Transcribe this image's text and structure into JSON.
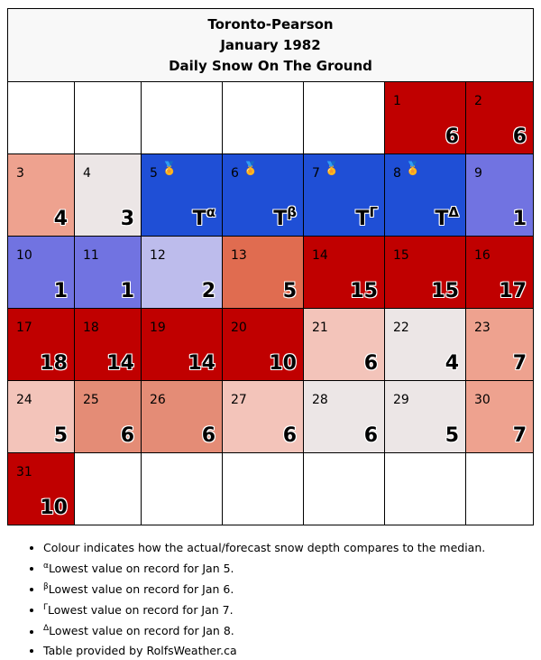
{
  "title": {
    "station": "Toronto-Pearson",
    "period": "January 1982",
    "metric": "Daily Snow On The Ground"
  },
  "chart_data": {
    "type": "table",
    "first_weekday_offset": 5,
    "colors": {
      "red": "#c00000",
      "red_mid": "#e06c50",
      "salmon": "#e48c76",
      "salmon_light": "#eea28f",
      "pink": "#f0b1a4",
      "pink_light": "#f3c4ba",
      "gray_light": "#ece6e6",
      "lavender": "#bdbcec",
      "periwinkle": "#7173e1",
      "blue": "#1f4fd6"
    },
    "days": [
      {
        "day": 1,
        "value": "6",
        "color": "red"
      },
      {
        "day": 2,
        "value": "6",
        "color": "red"
      },
      {
        "day": 3,
        "value": "4",
        "color": "salmon_light"
      },
      {
        "day": 4,
        "value": "3",
        "color": "gray_light"
      },
      {
        "day": 5,
        "value": "T",
        "mark": "α",
        "medal": true,
        "color": "blue"
      },
      {
        "day": 6,
        "value": "T",
        "mark": "β",
        "medal": true,
        "color": "blue"
      },
      {
        "day": 7,
        "value": "T",
        "mark": "Γ",
        "medal": true,
        "color": "blue"
      },
      {
        "day": 8,
        "value": "T",
        "mark": "Δ",
        "medal": true,
        "color": "blue"
      },
      {
        "day": 9,
        "value": "1",
        "color": "periwinkle"
      },
      {
        "day": 10,
        "value": "1",
        "color": "periwinkle"
      },
      {
        "day": 11,
        "value": "1",
        "color": "periwinkle"
      },
      {
        "day": 12,
        "value": "2",
        "color": "lavender"
      },
      {
        "day": 13,
        "value": "5",
        "color": "red_mid"
      },
      {
        "day": 14,
        "value": "15",
        "color": "red"
      },
      {
        "day": 15,
        "value": "15",
        "color": "red"
      },
      {
        "day": 16,
        "value": "17",
        "color": "red"
      },
      {
        "day": 17,
        "value": "18",
        "color": "red"
      },
      {
        "day": 18,
        "value": "14",
        "color": "red"
      },
      {
        "day": 19,
        "value": "14",
        "color": "red"
      },
      {
        "day": 20,
        "value": "10",
        "color": "red"
      },
      {
        "day": 21,
        "value": "6",
        "color": "pink_light"
      },
      {
        "day": 22,
        "value": "4",
        "color": "gray_light"
      },
      {
        "day": 23,
        "value": "7",
        "color": "salmon_light"
      },
      {
        "day": 24,
        "value": "5",
        "color": "pink_light"
      },
      {
        "day": 25,
        "value": "6",
        "color": "salmon"
      },
      {
        "day": 26,
        "value": "6",
        "color": "salmon"
      },
      {
        "day": 27,
        "value": "6",
        "color": "pink_light"
      },
      {
        "day": 28,
        "value": "6",
        "color": "gray_light"
      },
      {
        "day": 29,
        "value": "5",
        "color": "gray_light"
      },
      {
        "day": 30,
        "value": "7",
        "color": "salmon_light"
      },
      {
        "day": 31,
        "value": "10",
        "color": "red"
      }
    ]
  },
  "notes": [
    {
      "mark": "",
      "text": "Colour indicates how the actual/forecast snow depth compares to the median."
    },
    {
      "mark": "α",
      "text": "Lowest value on record for Jan 5."
    },
    {
      "mark": "β",
      "text": "Lowest value on record for Jan 6."
    },
    {
      "mark": "Γ",
      "text": "Lowest value on record for Jan 7."
    },
    {
      "mark": "Δ",
      "text": "Lowest value on record for Jan 8."
    },
    {
      "mark": "",
      "text": "Table provided by RolfsWeather.ca"
    }
  ],
  "icons": {
    "medal": "medal-icon"
  }
}
